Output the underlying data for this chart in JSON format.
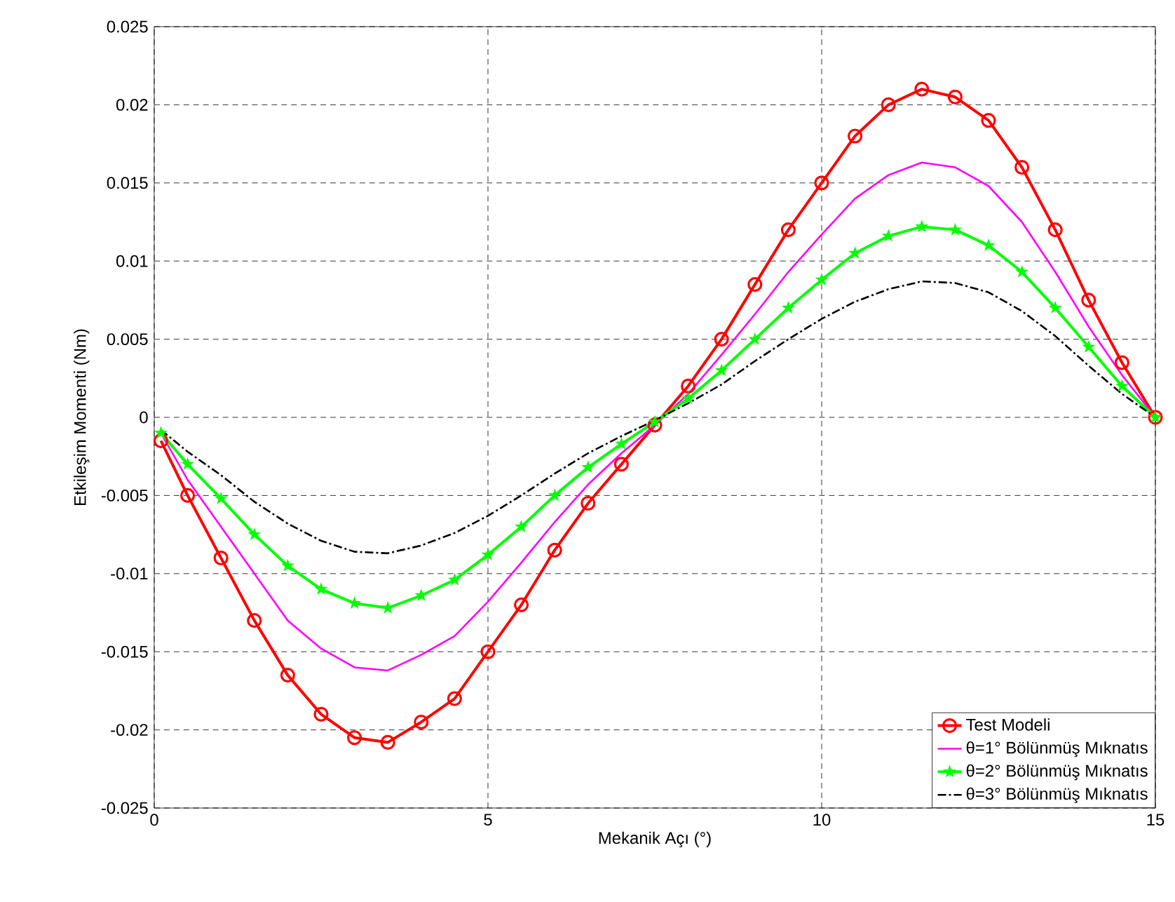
{
  "chart_data": {
    "type": "line",
    "xlabel": "Mekanik Açı (°)",
    "ylabel": "Etkileşim Momenti (Nm)",
    "x": [
      0.1,
      0.5,
      1.0,
      1.5,
      2.0,
      2.5,
      3.0,
      3.5,
      4.0,
      4.5,
      5.0,
      5.5,
      6.0,
      6.5,
      7.0,
      7.5,
      8.0,
      8.5,
      9.0,
      9.5,
      10.0,
      10.5,
      11.0,
      11.5,
      12.0,
      12.5,
      13.0,
      13.5,
      14.0,
      14.5,
      15.0
    ],
    "series": [
      {
        "name": "Test Modeli",
        "color": "#ff0000",
        "marker": "circle",
        "line_style": "solid",
        "values": [
          -0.0015,
          -0.005,
          -0.009,
          -0.013,
          -0.0165,
          -0.019,
          -0.0205,
          -0.0208,
          -0.0195,
          -0.018,
          -0.015,
          -0.012,
          -0.0085,
          -0.0055,
          -0.003,
          -0.0005,
          0.002,
          0.005,
          0.0085,
          0.012,
          0.015,
          0.018,
          0.02,
          0.021,
          0.0205,
          0.019,
          0.016,
          0.012,
          0.0075,
          0.0035,
          0.0
        ]
      },
      {
        "name": "θ=1° Bölünmüş Mıknatıs",
        "color": "#ff00ff",
        "marker": "none",
        "line_style": "solid",
        "values": [
          -0.001,
          -0.004,
          -0.007,
          -0.01,
          -0.013,
          -0.0148,
          -0.016,
          -0.0162,
          -0.0152,
          -0.014,
          -0.0118,
          -0.0093,
          -0.0067,
          -0.0043,
          -0.0023,
          -0.0005,
          0.0015,
          0.004,
          0.0066,
          0.0093,
          0.0117,
          0.014,
          0.0155,
          0.0163,
          0.016,
          0.0148,
          0.0125,
          0.0093,
          0.0058,
          0.0027,
          0.0
        ]
      },
      {
        "name": "θ=2° Bölünmüş Mıknatıs",
        "color": "#00ff00",
        "marker": "star",
        "line_style": "solid",
        "values": [
          -0.001,
          -0.003,
          -0.0052,
          -0.0075,
          -0.0095,
          -0.011,
          -0.0119,
          -0.0122,
          -0.0114,
          -0.0104,
          -0.0088,
          -0.007,
          -0.005,
          -0.0032,
          -0.0017,
          -0.0003,
          0.0012,
          0.003,
          0.005,
          0.007,
          0.0088,
          0.0105,
          0.0116,
          0.0122,
          0.012,
          0.011,
          0.0093,
          0.007,
          0.0045,
          0.002,
          0.0
        ]
      },
      {
        "name": "θ=3° Bölünmüş Mıknatıs",
        "color": "#000000",
        "marker": "none",
        "line_style": "dashdot",
        "values": [
          -0.0008,
          -0.0022,
          -0.0037,
          -0.0054,
          -0.0068,
          -0.0079,
          -0.0086,
          -0.0087,
          -0.0082,
          -0.0074,
          -0.0063,
          -0.005,
          -0.0036,
          -0.0023,
          -0.0012,
          -0.0002,
          0.0009,
          0.0021,
          0.0036,
          0.005,
          0.0063,
          0.0074,
          0.0082,
          0.0087,
          0.0086,
          0.008,
          0.0068,
          0.0052,
          0.0033,
          0.0015,
          0.0
        ]
      }
    ],
    "xlim": [
      0,
      15
    ],
    "ylim": [
      -0.025,
      0.025
    ],
    "xticks": [
      0,
      5,
      10,
      15
    ],
    "yticks": [
      -0.025,
      -0.02,
      -0.015,
      -0.01,
      -0.005,
      0,
      0.005,
      0.01,
      0.015,
      0.02,
      0.025
    ],
    "grid": true,
    "legend": "bottom right"
  }
}
